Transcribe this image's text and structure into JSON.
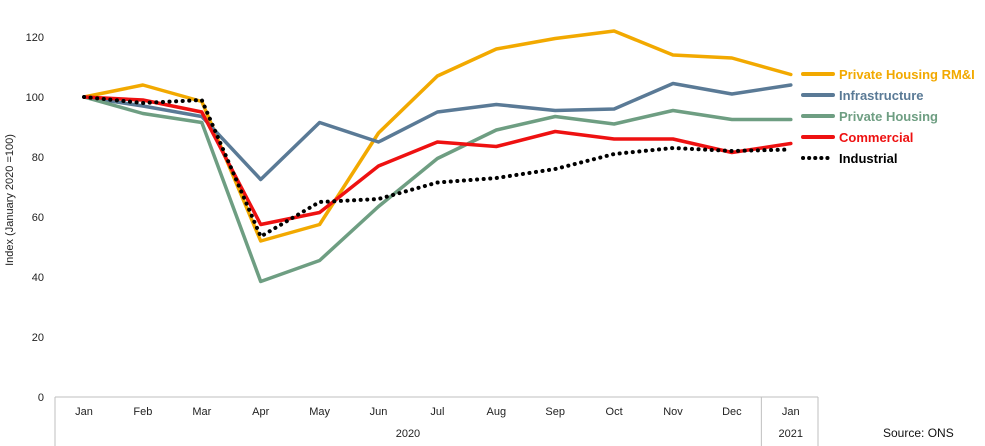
{
  "chart_data": {
    "type": "line",
    "title": "",
    "ylabel": "Index (January 2020 =100)",
    "ylim": [
      0,
      130
    ],
    "yticks": [
      0,
      20,
      40,
      60,
      80,
      100,
      120
    ],
    "categories": [
      "Jan",
      "Feb",
      "Mar",
      "Apr",
      "May",
      "Jun",
      "Jul",
      "Aug",
      "Sep",
      "Oct",
      "Nov",
      "Dec",
      "Jan"
    ],
    "year_groups": [
      {
        "label": "2020",
        "start": 0,
        "end": 11
      },
      {
        "label": "2021",
        "start": 12,
        "end": 12
      }
    ],
    "legend_position": "right",
    "grid": false,
    "series": [
      {
        "name": "Private Housing RM&I",
        "color": "#F2A900",
        "dash": "solid",
        "values": [
          100,
          104,
          98.5,
          52,
          57.5,
          88,
          107,
          116,
          119.5,
          122,
          114,
          113,
          107.5
        ]
      },
      {
        "name": "Infrastructure",
        "color": "#5A7A96",
        "dash": "solid",
        "values": [
          100,
          97,
          93.5,
          72.5,
          91.5,
          85,
          95,
          97.5,
          95.5,
          96,
          104.5,
          101,
          104
        ]
      },
      {
        "name": "Private Housing",
        "color": "#6E9E82",
        "dash": "solid",
        "values": [
          100,
          94.5,
          91.5,
          38.5,
          45.5,
          63.5,
          79.5,
          89,
          93.5,
          91,
          95.5,
          92.5,
          92.5
        ]
      },
      {
        "name": "Commercial",
        "color": "#EE1111",
        "dash": "solid",
        "values": [
          100,
          99,
          95,
          57.5,
          61.5,
          77,
          85,
          83.5,
          88.5,
          86,
          86,
          81.5,
          84.5
        ]
      },
      {
        "name": "Industrial",
        "color": "#000000",
        "dash": "dotted",
        "values": [
          100,
          98,
          99,
          53.5,
          65,
          66,
          71.5,
          73,
          76,
          81,
          83,
          82,
          82.5
        ]
      }
    ]
  },
  "source_text": "Source: ONS"
}
